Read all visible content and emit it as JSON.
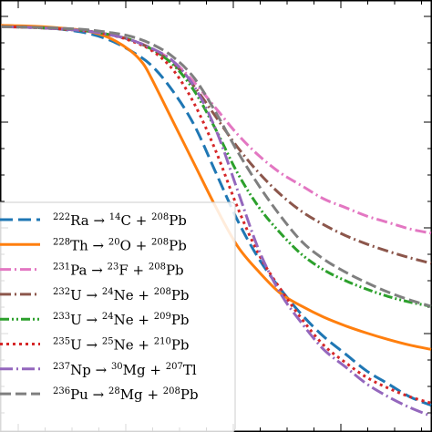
{
  "chart_data": {
    "type": "line",
    "title": "",
    "xlabel": "",
    "ylabel": "",
    "xlim": [
      0,
      1
    ],
    "ylim": [
      0,
      1
    ],
    "grid": false,
    "legend_position": "lower-left",
    "series": [
      {
        "name": "222Ra → 14C + 208Pb",
        "legend": {
          "sup1": "222",
          "el1": "Ra",
          "sup2": "14",
          "el2": "C",
          "sup3": "208",
          "el3": "Pb"
        },
        "color": "#1f77b4",
        "dash": "14 6",
        "x": [
          0,
          0.05,
          0.1,
          0.15,
          0.2,
          0.25,
          0.3,
          0.35,
          0.4,
          0.45,
          0.5,
          0.55,
          0.6,
          0.65,
          0.7,
          0.75,
          0.8,
          0.85,
          0.9,
          0.95,
          1.0
        ],
        "y": [
          0.943,
          0.941,
          0.938,
          0.933,
          0.925,
          0.91,
          0.885,
          0.85,
          0.79,
          0.71,
          0.6,
          0.49,
          0.4,
          0.33,
          0.27,
          0.22,
          0.18,
          0.14,
          0.11,
          0.08,
          0.06
        ]
      },
      {
        "name": "228Th → 20O + 208Pb",
        "legend": {
          "sup1": "228",
          "el1": "Th",
          "sup2": "20",
          "el2": "O",
          "sup3": "208",
          "el3": "Pb"
        },
        "color": "#ff7f0e",
        "dash": "",
        "x": [
          0,
          0.05,
          0.1,
          0.15,
          0.2,
          0.25,
          0.3,
          0.33,
          0.35,
          0.4,
          0.45,
          0.5,
          0.55,
          0.6,
          0.65,
          0.7,
          0.75,
          0.8,
          0.85,
          0.9,
          0.95,
          1.0
        ],
        "y": [
          0.943,
          0.942,
          0.94,
          0.936,
          0.93,
          0.915,
          0.885,
          0.855,
          0.82,
          0.72,
          0.62,
          0.52,
          0.43,
          0.37,
          0.32,
          0.29,
          0.265,
          0.245,
          0.228,
          0.213,
          0.2,
          0.19
        ]
      },
      {
        "name": "231Pa → 23F + 208Pb",
        "legend": {
          "sup1": "231",
          "el1": "Pa",
          "sup2": "23",
          "el2": "F",
          "sup3": "208",
          "el3": "Pb"
        },
        "color": "#e377c2",
        "dash": "12 4 2 4",
        "x": [
          0,
          0.05,
          0.1,
          0.15,
          0.2,
          0.25,
          0.3,
          0.35,
          0.4,
          0.45,
          0.5,
          0.55,
          0.6,
          0.65,
          0.7,
          0.75,
          0.8,
          0.85,
          0.9,
          0.95,
          1.0
        ],
        "y": [
          0.94,
          0.939,
          0.937,
          0.934,
          0.93,
          0.922,
          0.91,
          0.89,
          0.86,
          0.81,
          0.75,
          0.69,
          0.64,
          0.6,
          0.57,
          0.54,
          0.52,
          0.5,
          0.485,
          0.47,
          0.46
        ]
      },
      {
        "name": "232U → 24Ne + 208Pb",
        "legend": {
          "sup1": "232",
          "el1": "U",
          "sup2": "24",
          "el2": "Ne",
          "sup3": "208",
          "el3": "Pb"
        },
        "color": "#8c564b",
        "dash": "12 4 2 4",
        "x": [
          0,
          0.05,
          0.1,
          0.15,
          0.2,
          0.25,
          0.3,
          0.35,
          0.4,
          0.45,
          0.5,
          0.55,
          0.6,
          0.65,
          0.7,
          0.75,
          0.8,
          0.85,
          0.9,
          0.95,
          1.0
        ],
        "y": [
          0.94,
          0.939,
          0.937,
          0.934,
          0.93,
          0.922,
          0.91,
          0.888,
          0.855,
          0.8,
          0.73,
          0.66,
          0.6,
          0.55,
          0.51,
          0.48,
          0.455,
          0.435,
          0.418,
          0.403,
          0.39
        ]
      },
      {
        "name": "233U → 24Ne + 209Pb",
        "legend": {
          "sup1": "233",
          "el1": "U",
          "sup2": "24",
          "el2": "Ne",
          "sup3": "209",
          "el3": "Pb"
        },
        "color": "#2ca02c",
        "dash": "10 3 2 3 2 3",
        "x": [
          0,
          0.05,
          0.1,
          0.15,
          0.2,
          0.25,
          0.3,
          0.35,
          0.4,
          0.45,
          0.5,
          0.55,
          0.6,
          0.65,
          0.7,
          0.75,
          0.8,
          0.85,
          0.9,
          0.95,
          1.0
        ],
        "y": [
          0.94,
          0.939,
          0.937,
          0.934,
          0.93,
          0.922,
          0.91,
          0.888,
          0.852,
          0.79,
          0.7,
          0.6,
          0.52,
          0.46,
          0.41,
          0.375,
          0.35,
          0.33,
          0.313,
          0.3,
          0.29
        ]
      },
      {
        "name": "235U → 25Ne + 210Pb",
        "legend": {
          "sup1": "235",
          "el1": "U",
          "sup2": "25",
          "el2": "Ne",
          "sup3": "210",
          "el3": "Pb"
        },
        "color": "#d62728",
        "dash": "3 4",
        "x": [
          0,
          0.05,
          0.1,
          0.15,
          0.2,
          0.25,
          0.3,
          0.35,
          0.4,
          0.45,
          0.5,
          0.55,
          0.6,
          0.65,
          0.7,
          0.75,
          0.8,
          0.85,
          0.9,
          0.95,
          1.0
        ],
        "y": [
          0.94,
          0.939,
          0.937,
          0.934,
          0.93,
          0.922,
          0.908,
          0.885,
          0.84,
          0.76,
          0.65,
          0.52,
          0.41,
          0.33,
          0.26,
          0.2,
          0.16,
          0.125,
          0.1,
          0.08,
          0.065
        ]
      },
      {
        "name": "237Np → 30Mg + 207Tl",
        "legend": {
          "sup1": "237",
          "el1": "Np",
          "sup2": "30",
          "el2": "Mg",
          "sup3": "207",
          "el3": "Tl"
        },
        "color": "#9467bd",
        "dash": "14 4 2 4",
        "x": [
          0,
          0.05,
          0.1,
          0.15,
          0.2,
          0.25,
          0.3,
          0.35,
          0.4,
          0.45,
          0.5,
          0.55,
          0.6,
          0.65,
          0.7,
          0.75,
          0.8,
          0.85,
          0.9,
          0.95,
          1.0
        ],
        "y": [
          0.94,
          0.939,
          0.937,
          0.934,
          0.93,
          0.922,
          0.91,
          0.89,
          0.86,
          0.8,
          0.7,
          0.56,
          0.42,
          0.32,
          0.25,
          0.19,
          0.15,
          0.11,
          0.08,
          0.055,
          0.035
        ]
      },
      {
        "name": "236Pu → 28Mg + 208Pb",
        "legend": {
          "sup1": "236",
          "el1": "Pu",
          "sup2": "28",
          "el2": "Mg",
          "sup3": "208",
          "el3": "Pb"
        },
        "color": "#7f7f7f",
        "dash": "12 5",
        "x": [
          0,
          0.05,
          0.1,
          0.15,
          0.2,
          0.25,
          0.3,
          0.35,
          0.4,
          0.45,
          0.5,
          0.55,
          0.6,
          0.65,
          0.7,
          0.75,
          0.8,
          0.85,
          0.9,
          0.95,
          1.0
        ],
        "y": [
          0.94,
          0.939,
          0.938,
          0.936,
          0.933,
          0.927,
          0.918,
          0.9,
          0.87,
          0.82,
          0.74,
          0.65,
          0.57,
          0.5,
          0.44,
          0.4,
          0.37,
          0.345,
          0.323,
          0.305,
          0.29
        ]
      }
    ]
  }
}
